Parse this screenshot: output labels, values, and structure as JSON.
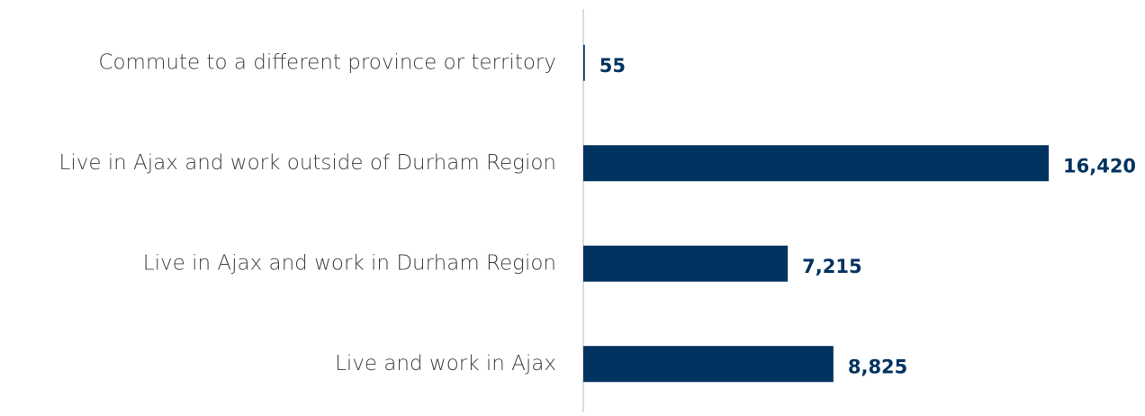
{
  "chart_data": {
    "type": "bar",
    "orientation": "horizontal",
    "categories": [
      "Commute to a different province or territory",
      "Live in Ajax and work outside of Durham Region",
      "Live in Ajax and work in Durham Region",
      "Live and work in Ajax"
    ],
    "values": [
      55,
      16420,
      7215,
      8825
    ],
    "value_labels": [
      "55",
      "16,420",
      "7,215",
      "8,825"
    ],
    "color": "#00335f"
  }
}
